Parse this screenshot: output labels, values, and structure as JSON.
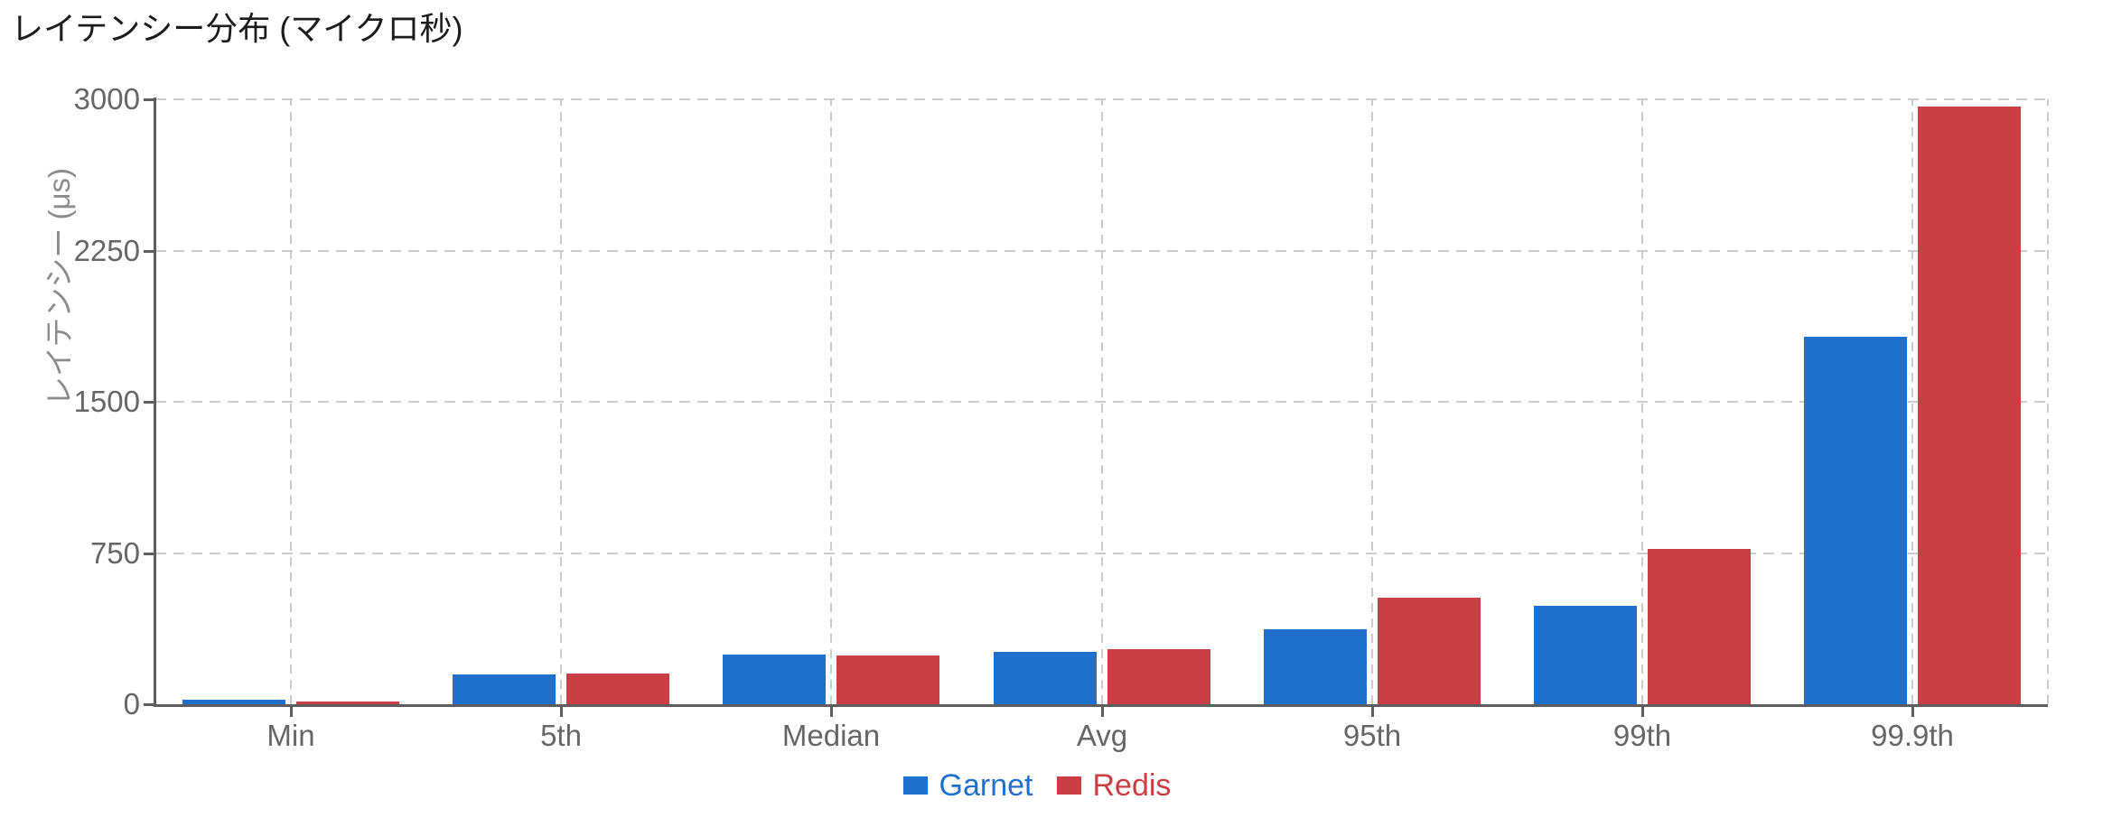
{
  "title": "レイテンシー分布 (マイクロ秒)",
  "chart_data": {
    "type": "bar",
    "title": "レイテンシー分布 (マイクロ秒)",
    "xlabel": "",
    "ylabel": "レイテンシー (μs)",
    "categories": [
      "Min",
      "5th",
      "Median",
      "Avg",
      "95th",
      "99th",
      "99.9th"
    ],
    "series": [
      {
        "name": "Garnet",
        "color": "#1f70cd",
        "values": [
          22,
          146,
          246,
          258,
          372,
          490,
          1822
        ]
      },
      {
        "name": "Redis",
        "color": "#c93e44",
        "values": [
          15,
          153,
          242,
          273,
          527,
          770,
          2965
        ]
      }
    ],
    "ylim": [
      0,
      3000
    ],
    "yticks": [
      0,
      750,
      1500,
      2250,
      3000
    ],
    "grid": true,
    "grid_style": "dashed",
    "legend_position": "bottom"
  },
  "colors": {
    "background": "#ffffff",
    "title_text": "#1c1c1e",
    "tick_text": "#666666",
    "axis_title_text": "#8c8c8c",
    "axis_line": "#5d5d5f",
    "gridline": "#cbcbcb",
    "garnet_blue": "#1f70cd",
    "redis_red": "#c93e44"
  }
}
